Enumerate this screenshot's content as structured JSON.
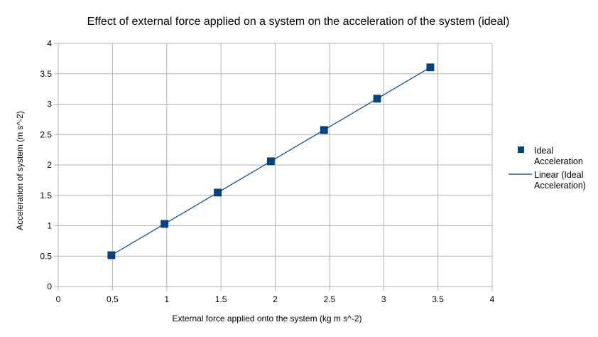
{
  "chart_data": {
    "type": "scatter",
    "title": "Effect of external force applied on a system on the acceleration of the system (ideal)",
    "xlabel": "External force applied onto the system (kg m s^-2)",
    "ylabel": "Acceleration of system (m s^-2)",
    "xlim": [
      0,
      4
    ],
    "ylim": [
      0,
      4
    ],
    "xticks": [
      0,
      0.5,
      1,
      1.5,
      2,
      2.5,
      3,
      3.5,
      4
    ],
    "yticks": [
      0,
      0.5,
      1,
      1.5,
      2,
      2.5,
      3,
      3.5,
      4
    ],
    "grid": true,
    "legend_position": "right",
    "series": [
      {
        "name": "Ideal Acceleration",
        "marker": "square",
        "color": "#004586",
        "x": [
          0.49,
          0.98,
          1.47,
          1.96,
          2.45,
          2.94,
          3.43
        ],
        "y": [
          0.515,
          1.03,
          1.545,
          2.06,
          2.575,
          3.09,
          3.605
        ]
      }
    ],
    "trendline": {
      "name": "Linear (Ideal Acceleration)",
      "type": "linear",
      "color": "#004586"
    },
    "legend": {
      "series_label_lines": [
        "Ideal",
        "Acceleration"
      ],
      "trend_label_lines": [
        "Linear (Ideal",
        "Acceleration)"
      ]
    }
  }
}
